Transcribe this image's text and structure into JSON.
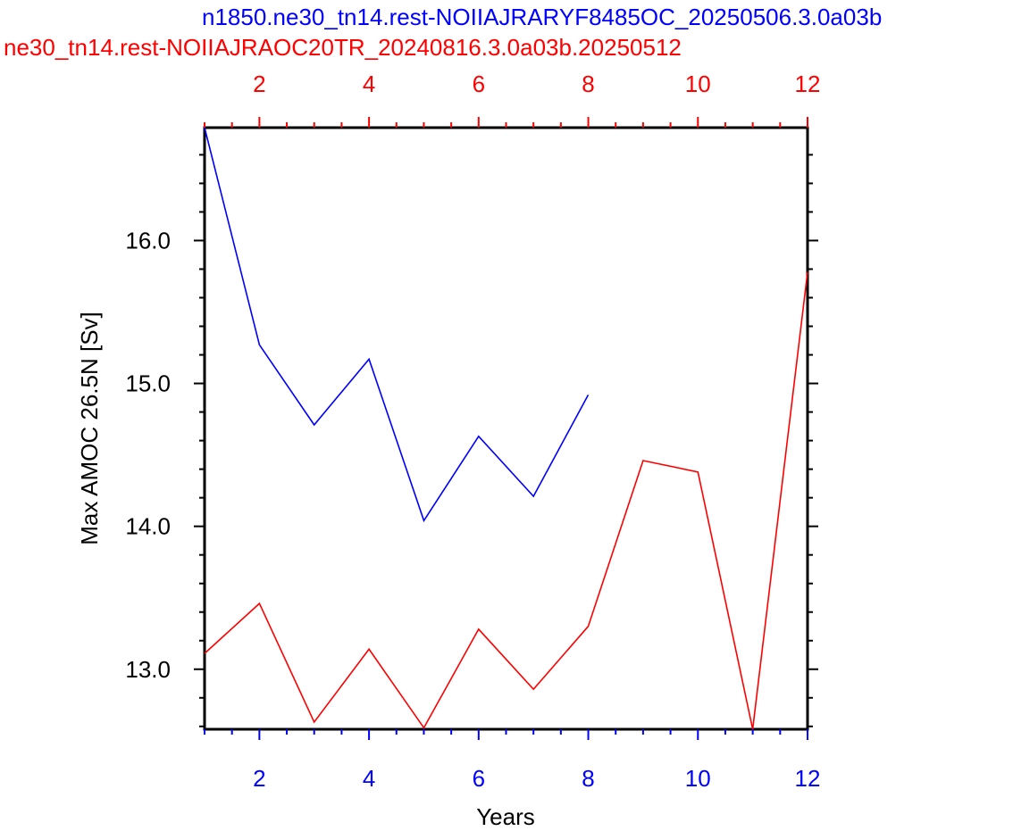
{
  "chart_data": {
    "type": "line",
    "titles": [
      {
        "text": "n1850.ne30_tn14.rest-NOIIAJRARYF8485OC_20250506.3.0a03b",
        "color": "#0000ff"
      },
      {
        "text": "ne30_tn14.rest-NOIIAJRAOC20TR_20240816.3.0a03b.20250512",
        "color": "#ff0000"
      }
    ],
    "xlabel": "Years",
    "ylabel": "Max AMOC 26.5N [Sv]",
    "xlim": [
      1,
      12
    ],
    "ylim": [
      12.58,
      16.79
    ],
    "x_ticks": [
      2,
      4,
      6,
      8,
      10,
      12
    ],
    "x_tick_labels": [
      "2",
      "4",
      "6",
      "8",
      "10",
      "12"
    ],
    "y_ticks": [
      13.0,
      14.0,
      15.0,
      16.0
    ],
    "y_tick_labels": [
      "13.0",
      "14.0",
      "15.0",
      "16.0"
    ],
    "top_axis": {
      "ticks": [
        2,
        4,
        6,
        8,
        10,
        12
      ],
      "tick_labels": [
        "2",
        "4",
        "6",
        "8",
        "10",
        "12"
      ],
      "color": "#ff0000"
    },
    "bottom_axis": {
      "color": "#0000ff"
    },
    "grid": false,
    "legend": "none",
    "series": [
      {
        "color": "#0000ff",
        "x": [
          1,
          2,
          3,
          4,
          5,
          6,
          7,
          8
        ],
        "values": [
          16.79,
          15.27,
          14.71,
          15.17,
          14.04,
          14.63,
          14.21,
          14.92
        ]
      },
      {
        "color": "#ff0000",
        "x": [
          1,
          2,
          3,
          4,
          5,
          6,
          7,
          8,
          9,
          10,
          11,
          12
        ],
        "values": [
          13.11,
          13.46,
          12.63,
          13.14,
          12.59,
          13.28,
          12.86,
          13.3,
          14.46,
          14.38,
          12.58,
          15.78
        ]
      }
    ]
  }
}
